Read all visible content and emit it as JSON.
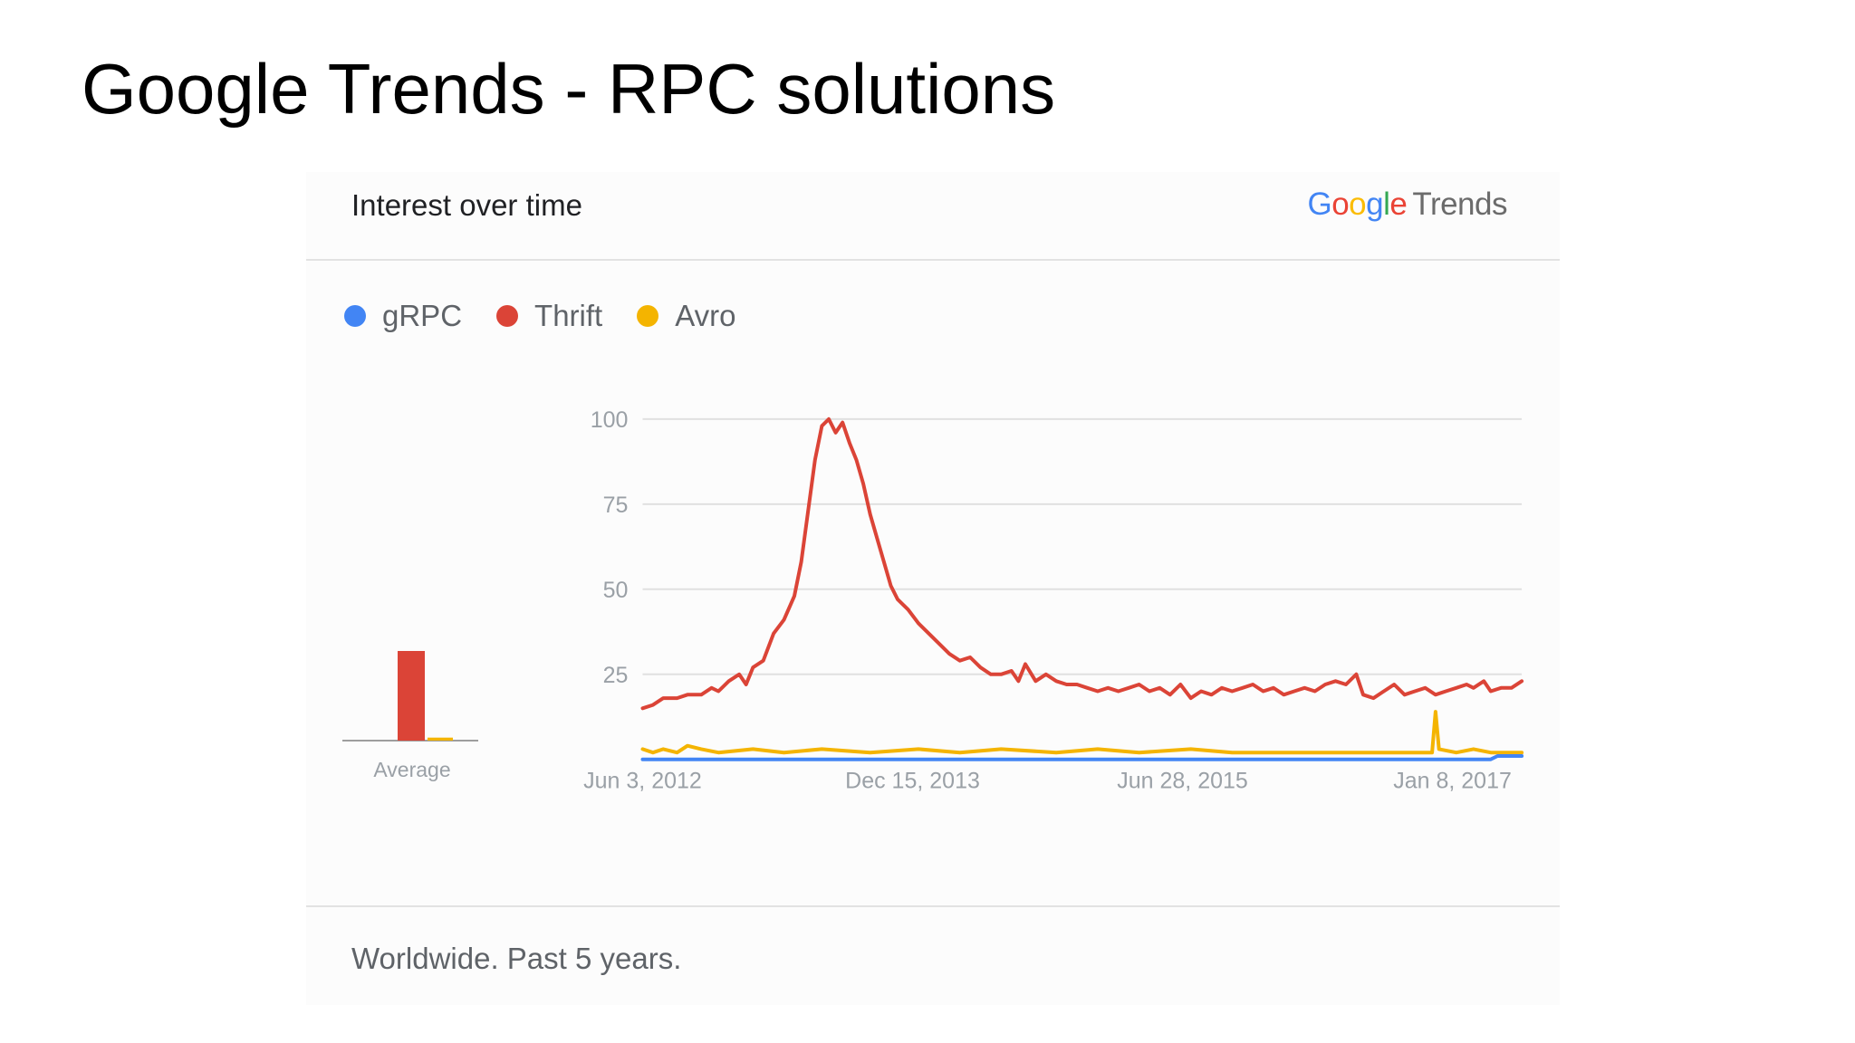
{
  "slide": {
    "title": "Google Trends - RPC solutions"
  },
  "card": {
    "title": "Interest over time",
    "logo": {
      "g1": "G",
      "g2": "o",
      "g3": "o",
      "g4": "g",
      "g5": "l",
      "g6": "e",
      "trends": "Trends"
    },
    "footer": "Worldwide. Past 5 years."
  },
  "colors": {
    "grpc": "#4285f4",
    "thrift": "#db4437",
    "avro": "#f4b400",
    "grid": "#e0e0e0",
    "axis_text": "#9aa0a6"
  },
  "legend": [
    {
      "label": "gRPC",
      "color": "#4285f4"
    },
    {
      "label": "Thrift",
      "color": "#db4437"
    },
    {
      "label": "Avro",
      "color": "#f4b400"
    }
  ],
  "chart_data": [
    {
      "type": "bar",
      "xlabel": "Average",
      "categories": [
        "gRPC",
        "Thrift",
        "Avro"
      ],
      "values": [
        0,
        30,
        1
      ],
      "ylim": [
        0,
        100
      ]
    },
    {
      "type": "line",
      "ylim": [
        0,
        100
      ],
      "yticks": [
        25,
        50,
        75,
        100
      ],
      "xticks": [
        "Jun 3, 2012",
        "Dec 15, 2013",
        "Jun 28, 2015",
        "Jan 8, 2017"
      ],
      "x_start": "2012-06-03",
      "x_end": "2017-04-23",
      "grid": true,
      "legend_position": "top-left",
      "series": [
        {
          "name": "gRPC",
          "color": "#4285f4",
          "points": [
            [
              "2012-06-03",
              0
            ],
            [
              "2016-01-01",
              0
            ],
            [
              "2017-01-01",
              0
            ],
            [
              "2017-02-19",
              0
            ],
            [
              "2017-03-05",
              1
            ],
            [
              "2017-04-23",
              1
            ]
          ]
        },
        {
          "name": "Thrift",
          "color": "#db4437",
          "points": [
            [
              "2012-06-03",
              15
            ],
            [
              "2012-06-24",
              16
            ],
            [
              "2012-07-15",
              18
            ],
            [
              "2012-08-12",
              18
            ],
            [
              "2012-09-02",
              19
            ],
            [
              "2012-09-30",
              19
            ],
            [
              "2012-10-21",
              21
            ],
            [
              "2012-11-04",
              20
            ],
            [
              "2012-11-25",
              23
            ],
            [
              "2012-12-16",
              25
            ],
            [
              "2012-12-30",
              22
            ],
            [
              "2013-01-13",
              27
            ],
            [
              "2013-02-03",
              29
            ],
            [
              "2013-02-24",
              37
            ],
            [
              "2013-03-17",
              41
            ],
            [
              "2013-04-07",
              48
            ],
            [
              "2013-04-21",
              58
            ],
            [
              "2013-05-05",
              73
            ],
            [
              "2013-05-19",
              88
            ],
            [
              "2013-06-02",
              98
            ],
            [
              "2013-06-16",
              100
            ],
            [
              "2013-06-30",
              96
            ],
            [
              "2013-07-14",
              99
            ],
            [
              "2013-07-28",
              93
            ],
            [
              "2013-08-11",
              88
            ],
            [
              "2013-08-25",
              81
            ],
            [
              "2013-09-08",
              72
            ],
            [
              "2013-09-22",
              65
            ],
            [
              "2013-10-06",
              58
            ],
            [
              "2013-10-20",
              51
            ],
            [
              "2013-11-03",
              47
            ],
            [
              "2013-11-24",
              44
            ],
            [
              "2013-12-15",
              40
            ],
            [
              "2014-01-05",
              37
            ],
            [
              "2014-01-26",
              34
            ],
            [
              "2014-02-16",
              31
            ],
            [
              "2014-03-09",
              29
            ],
            [
              "2014-03-30",
              30
            ],
            [
              "2014-04-20",
              27
            ],
            [
              "2014-05-11",
              25
            ],
            [
              "2014-06-01",
              25
            ],
            [
              "2014-06-22",
              26
            ],
            [
              "2014-07-06",
              23
            ],
            [
              "2014-07-20",
              28
            ],
            [
              "2014-08-10",
              23
            ],
            [
              "2014-08-31",
              25
            ],
            [
              "2014-09-21",
              23
            ],
            [
              "2014-10-12",
              22
            ],
            [
              "2014-11-02",
              22
            ],
            [
              "2014-11-23",
              21
            ],
            [
              "2014-12-14",
              20
            ],
            [
              "2015-01-04",
              21
            ],
            [
              "2015-01-25",
              20
            ],
            [
              "2015-02-15",
              21
            ],
            [
              "2015-03-08",
              22
            ],
            [
              "2015-03-29",
              20
            ],
            [
              "2015-04-19",
              21
            ],
            [
              "2015-05-10",
              19
            ],
            [
              "2015-05-31",
              22
            ],
            [
              "2015-06-21",
              18
            ],
            [
              "2015-07-12",
              20
            ],
            [
              "2015-08-02",
              19
            ],
            [
              "2015-08-23",
              21
            ],
            [
              "2015-09-13",
              20
            ],
            [
              "2015-10-04",
              21
            ],
            [
              "2015-10-25",
              22
            ],
            [
              "2015-11-15",
              20
            ],
            [
              "2015-12-06",
              21
            ],
            [
              "2015-12-27",
              19
            ],
            [
              "2016-01-17",
              20
            ],
            [
              "2016-02-07",
              21
            ],
            [
              "2016-02-28",
              20
            ],
            [
              "2016-03-20",
              22
            ],
            [
              "2016-04-10",
              23
            ],
            [
              "2016-05-01",
              22
            ],
            [
              "2016-05-22",
              25
            ],
            [
              "2016-06-05",
              19
            ],
            [
              "2016-06-26",
              18
            ],
            [
              "2016-07-17",
              20
            ],
            [
              "2016-08-07",
              22
            ],
            [
              "2016-08-28",
              19
            ],
            [
              "2016-09-18",
              20
            ],
            [
              "2016-10-09",
              21
            ],
            [
              "2016-10-30",
              19
            ],
            [
              "2016-11-20",
              20
            ],
            [
              "2016-12-11",
              21
            ],
            [
              "2017-01-01",
              22
            ],
            [
              "2017-01-15",
              21
            ],
            [
              "2017-02-05",
              23
            ],
            [
              "2017-02-19",
              20
            ],
            [
              "2017-03-12",
              21
            ],
            [
              "2017-04-02",
              21
            ],
            [
              "2017-04-23",
              23
            ]
          ]
        },
        {
          "name": "Avro",
          "color": "#f4b400",
          "points": [
            [
              "2012-06-03",
              3
            ],
            [
              "2012-06-24",
              2
            ],
            [
              "2012-07-15",
              3
            ],
            [
              "2012-08-12",
              2
            ],
            [
              "2012-09-02",
              4
            ],
            [
              "2012-09-30",
              3
            ],
            [
              "2012-11-04",
              2
            ],
            [
              "2013-01-13",
              3
            ],
            [
              "2013-03-17",
              2
            ],
            [
              "2013-06-02",
              3
            ],
            [
              "2013-09-08",
              2
            ],
            [
              "2013-12-15",
              3
            ],
            [
              "2014-03-09",
              2
            ],
            [
              "2014-06-01",
              3
            ],
            [
              "2014-09-21",
              2
            ],
            [
              "2014-12-14",
              3
            ],
            [
              "2015-03-08",
              2
            ],
            [
              "2015-06-21",
              3
            ],
            [
              "2015-09-13",
              2
            ],
            [
              "2015-12-06",
              2
            ],
            [
              "2016-03-20",
              2
            ],
            [
              "2016-06-05",
              2
            ],
            [
              "2016-09-18",
              2
            ],
            [
              "2016-10-23",
              2
            ],
            [
              "2016-10-30",
              14
            ],
            [
              "2016-11-06",
              3
            ],
            [
              "2016-12-11",
              2
            ],
            [
              "2017-01-15",
              3
            ],
            [
              "2017-02-19",
              2
            ],
            [
              "2017-04-23",
              2
            ]
          ]
        }
      ]
    }
  ]
}
